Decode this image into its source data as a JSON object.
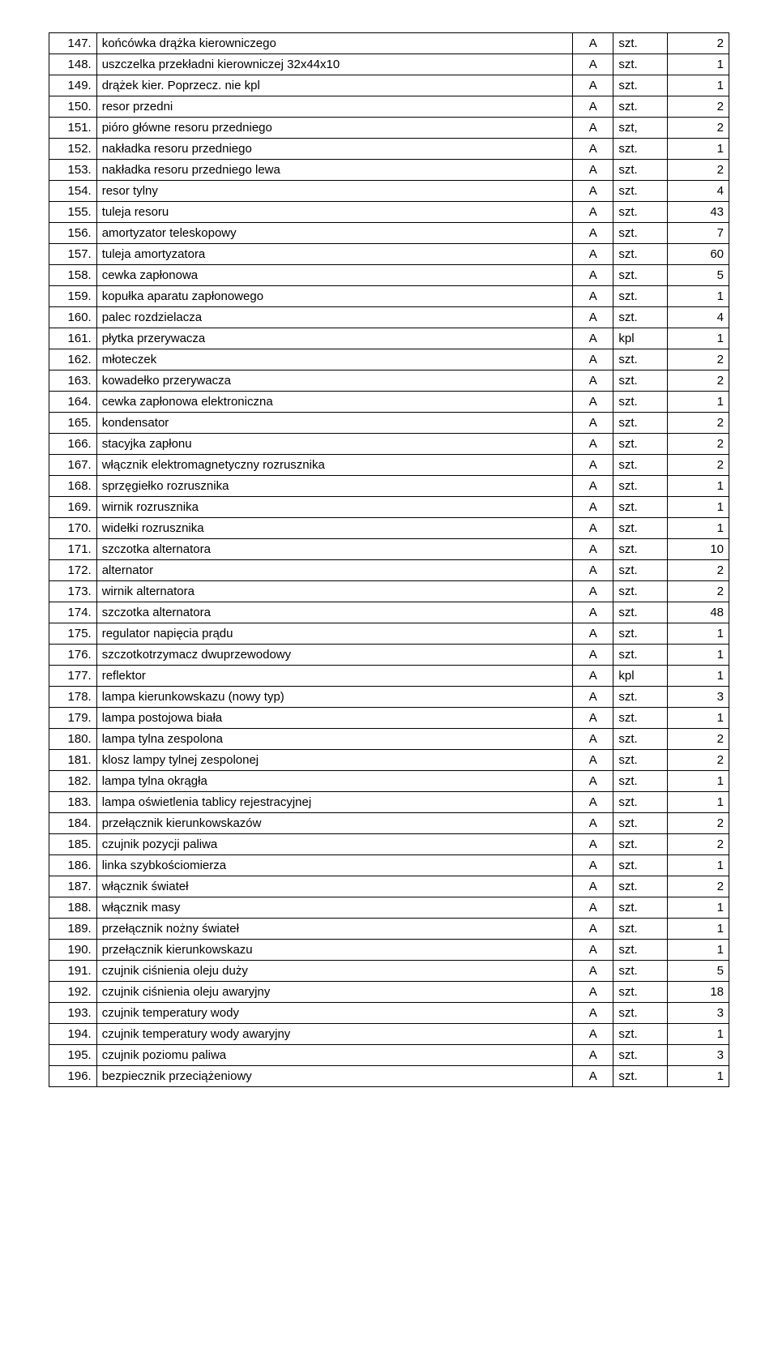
{
  "table": {
    "rows": [
      {
        "num": "147.",
        "desc": "końcówka drążka kierowniczego",
        "cat": "A",
        "unit": "szt.",
        "qty": "2"
      },
      {
        "num": "148.",
        "desc": "uszczelka przekładni kierowniczej 32x44x10",
        "cat": "A",
        "unit": "szt.",
        "qty": "1"
      },
      {
        "num": "149.",
        "desc": "drążek kier. Poprzecz. nie kpl",
        "cat": "A",
        "unit": "szt.",
        "qty": "1"
      },
      {
        "num": "150.",
        "desc": "resor przedni",
        "cat": "A",
        "unit": "szt.",
        "qty": "2"
      },
      {
        "num": "151.",
        "desc": "pióro główne resoru przedniego",
        "cat": "A",
        "unit": "szt,",
        "qty": "2"
      },
      {
        "num": "152.",
        "desc": "nakładka resoru przedniego",
        "cat": "A",
        "unit": "szt.",
        "qty": "1"
      },
      {
        "num": "153.",
        "desc": "nakładka resoru przedniego lewa",
        "cat": "A",
        "unit": "szt.",
        "qty": "2"
      },
      {
        "num": "154.",
        "desc": "resor tylny",
        "cat": "A",
        "unit": "szt.",
        "qty": "4"
      },
      {
        "num": "155.",
        "desc": "tuleja resoru",
        "cat": "A",
        "unit": "szt.",
        "qty": "43"
      },
      {
        "num": "156.",
        "desc": "amortyzator teleskopowy",
        "cat": "A",
        "unit": "szt.",
        "qty": "7"
      },
      {
        "num": "157.",
        "desc": "tuleja amortyzatora",
        "cat": "A",
        "unit": "szt.",
        "qty": "60"
      },
      {
        "num": "158.",
        "desc": "cewka zapłonowa",
        "cat": "A",
        "unit": "szt.",
        "qty": "5"
      },
      {
        "num": "159.",
        "desc": "kopułka aparatu zapłonowego",
        "cat": "A",
        "unit": "szt.",
        "qty": "1"
      },
      {
        "num": "160.",
        "desc": "palec rozdzielacza",
        "cat": "A",
        "unit": "szt.",
        "qty": "4"
      },
      {
        "num": "161.",
        "desc": "płytka przerywacza",
        "cat": "A",
        "unit": "kpl",
        "qty": "1"
      },
      {
        "num": "162.",
        "desc": "młoteczek",
        "cat": "A",
        "unit": "szt.",
        "qty": "2"
      },
      {
        "num": "163.",
        "desc": "kowadełko przerywacza",
        "cat": "A",
        "unit": "szt.",
        "qty": "2"
      },
      {
        "num": "164.",
        "desc": "cewka zapłonowa elektroniczna",
        "cat": "A",
        "unit": "szt.",
        "qty": "1"
      },
      {
        "num": "165.",
        "desc": "kondensator",
        "cat": "A",
        "unit": "szt.",
        "qty": "2"
      },
      {
        "num": "166.",
        "desc": "stacyjka zapłonu",
        "cat": "A",
        "unit": "szt.",
        "qty": "2"
      },
      {
        "num": "167.",
        "desc": "włącznik elektromagnetyczny rozrusznika",
        "cat": "A",
        "unit": "szt.",
        "qty": "2"
      },
      {
        "num": "168.",
        "desc": "sprzęgiełko rozrusznika",
        "cat": "A",
        "unit": "szt.",
        "qty": "1"
      },
      {
        "num": "169.",
        "desc": "wirnik rozrusznika",
        "cat": "A",
        "unit": "szt.",
        "qty": "1"
      },
      {
        "num": "170.",
        "desc": "widełki rozrusznika",
        "cat": "A",
        "unit": "szt.",
        "qty": "1"
      },
      {
        "num": "171.",
        "desc": "szczotka alternatora",
        "cat": "A",
        "unit": "szt.",
        "qty": "10"
      },
      {
        "num": "172.",
        "desc": "alternator",
        "cat": "A",
        "unit": "szt.",
        "qty": "2"
      },
      {
        "num": "173.",
        "desc": "wirnik alternatora",
        "cat": "A",
        "unit": "szt.",
        "qty": "2"
      },
      {
        "num": "174.",
        "desc": "szczotka alternatora",
        "cat": "A",
        "unit": "szt.",
        "qty": "48"
      },
      {
        "num": "175.",
        "desc": "regulator napięcia prądu",
        "cat": "A",
        "unit": "szt.",
        "qty": "1"
      },
      {
        "num": "176.",
        "desc": "szczotkotrzymacz dwuprzewodowy",
        "cat": "A",
        "unit": "szt.",
        "qty": "1"
      },
      {
        "num": "177.",
        "desc": "reflektor",
        "cat": "A",
        "unit": "kpl",
        "qty": "1"
      },
      {
        "num": "178.",
        "desc": "lampa kierunkowskazu (nowy typ)",
        "cat": "A",
        "unit": "szt.",
        "qty": "3"
      },
      {
        "num": "179.",
        "desc": "lampa postojowa biała",
        "cat": "A",
        "unit": "szt.",
        "qty": "1"
      },
      {
        "num": "180.",
        "desc": "lampa tylna zespolona",
        "cat": "A",
        "unit": "szt.",
        "qty": "2"
      },
      {
        "num": "181.",
        "desc": "klosz lampy tylnej zespolonej",
        "cat": "A",
        "unit": "szt.",
        "qty": "2"
      },
      {
        "num": "182.",
        "desc": "lampa tylna okrągła",
        "cat": "A",
        "unit": "szt.",
        "qty": "1"
      },
      {
        "num": "183.",
        "desc": "lampa oświetlenia tablicy rejestracyjnej",
        "cat": "A",
        "unit": "szt.",
        "qty": "1"
      },
      {
        "num": "184.",
        "desc": "przełącznik kierunkowskazów",
        "cat": "A",
        "unit": "szt.",
        "qty": "2"
      },
      {
        "num": "185.",
        "desc": "czujnik pozycji paliwa",
        "cat": "A",
        "unit": "szt.",
        "qty": "2"
      },
      {
        "num": "186.",
        "desc": "linka szybkościomierza",
        "cat": "A",
        "unit": "szt.",
        "qty": "1"
      },
      {
        "num": "187.",
        "desc": "włącznik świateł",
        "cat": "A",
        "unit": "szt.",
        "qty": "2"
      },
      {
        "num": "188.",
        "desc": "włącznik masy",
        "cat": "A",
        "unit": "szt.",
        "qty": "1"
      },
      {
        "num": "189.",
        "desc": "przełącznik nożny świateł",
        "cat": "A",
        "unit": "szt.",
        "qty": "1"
      },
      {
        "num": "190.",
        "desc": "przełącznik kierunkowskazu",
        "cat": "A",
        "unit": "szt.",
        "qty": "1"
      },
      {
        "num": "191.",
        "desc": "czujnik ciśnienia oleju duży",
        "cat": "A",
        "unit": "szt.",
        "qty": "5"
      },
      {
        "num": "192.",
        "desc": "czujnik ciśnienia oleju awaryjny",
        "cat": "A",
        "unit": "szt.",
        "qty": "18"
      },
      {
        "num": "193.",
        "desc": "czujnik temperatury wody",
        "cat": "A",
        "unit": "szt.",
        "qty": "3"
      },
      {
        "num": "194.",
        "desc": "czujnik temperatury wody awaryjny",
        "cat": "A",
        "unit": "szt.",
        "qty": "1"
      },
      {
        "num": "195.",
        "desc": "czujnik poziomu paliwa",
        "cat": "A",
        "unit": "szt.",
        "qty": "3"
      },
      {
        "num": "196.",
        "desc": "bezpiecznik przeciążeniowy",
        "cat": "A",
        "unit": "szt.",
        "qty": "1"
      }
    ]
  }
}
